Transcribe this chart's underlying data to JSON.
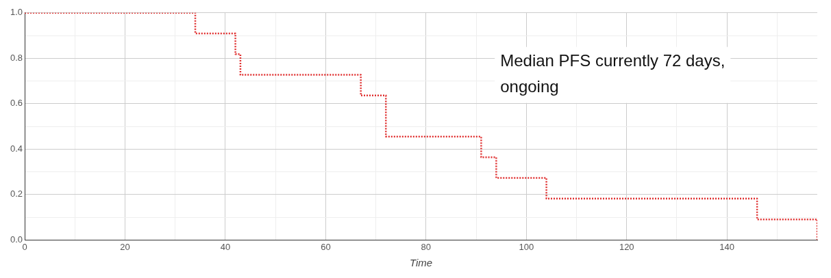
{
  "chart_data": {
    "type": "step",
    "xlabel": "Time",
    "annotations": [
      "Median PFS currently 72 days, ongoing"
    ],
    "x": [
      0,
      34,
      42,
      43,
      67,
      72,
      91,
      94,
      104,
      146,
      158
    ],
    "series": [
      {
        "color": "#e03030",
        "values": [
          1,
          0.909,
          0.818,
          0.727,
          0.636,
          0.455,
          0.364,
          0.273,
          0.182,
          0.091,
          0
        ]
      }
    ],
    "xlim": [
      0,
      158
    ],
    "xticks": [
      0,
      {
        "value": 10,
        "label": null
      },
      20,
      {
        "value": 30,
        "label": null
      },
      40,
      {
        "value": 50,
        "label": null
      },
      60,
      {
        "value": 70,
        "label": null
      },
      80,
      {
        "value": 90,
        "label": null
      },
      100,
      {
        "value": 110,
        "label": null
      },
      120,
      {
        "value": 130,
        "label": null
      },
      140,
      {
        "value": 150,
        "label": null
      }
    ],
    "ylim": [
      0,
      1
    ],
    "yticks": [
      {
        "value": 0,
        "label": "0.0"
      },
      {
        "value": 0.1,
        "label": null
      },
      {
        "value": 0.2,
        "label": "0.2"
      },
      {
        "value": 0.3,
        "label": null
      },
      {
        "value": 0.4,
        "label": "0.4"
      },
      {
        "value": 0.5,
        "label": null
      },
      {
        "value": 0.6,
        "label": "0.6"
      },
      {
        "value": 0.7,
        "label": null
      },
      {
        "value": 0.8,
        "label": "0.8"
      },
      {
        "value": 0.9,
        "label": null
      },
      {
        "value": 1,
        "label": "1.0"
      }
    ],
    "grid": true,
    "marker": "none",
    "line_style": "dotted"
  }
}
